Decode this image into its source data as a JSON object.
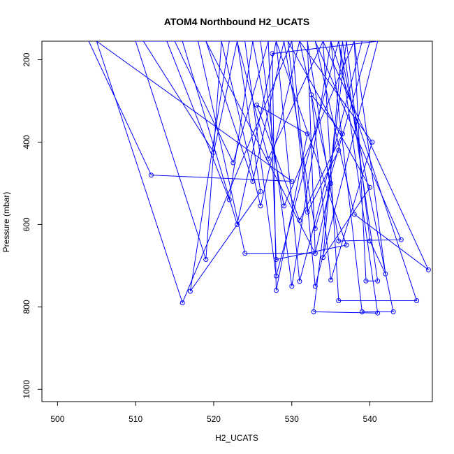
{
  "chart_data": {
    "type": "line",
    "title": "ATOM4 Northbound H2_UCATS",
    "xlabel": "H2_UCATS",
    "ylabel": "Pressure (mbar)",
    "xlim": [
      498,
      548
    ],
    "ylim": [
      1030,
      155
    ],
    "y_reversed": true,
    "xticks": [
      500,
      510,
      520,
      530,
      540
    ],
    "yticks": [
      200,
      400,
      600,
      800,
      1000
    ],
    "grid": false,
    "legend": "none",
    "color": "#0000ff",
    "series": [
      {
        "points": [
          [
            504,
            155
          ],
          [
            512,
            480
          ],
          [
            530,
            495
          ],
          [
            505,
            155
          ],
          [
            516,
            790
          ],
          [
            530,
            155
          ],
          [
            510,
            155
          ],
          [
            519,
            685
          ],
          [
            521,
            155
          ],
          [
            511,
            155
          ],
          [
            520,
            425
          ],
          [
            523,
            155
          ],
          [
            514,
            155
          ],
          [
            522,
            540
          ],
          [
            525,
            155
          ],
          [
            515,
            155
          ],
          [
            522.5,
            450
          ],
          [
            527,
            155
          ],
          [
            516,
            155
          ],
          [
            523,
            600
          ],
          [
            528,
            155
          ],
          [
            518,
            155
          ],
          [
            524,
            670
          ],
          [
            533,
            670
          ],
          [
            519,
            155
          ],
          [
            525,
            495
          ],
          [
            529,
            155
          ],
          [
            521,
            155
          ],
          [
            526,
            555
          ],
          [
            531,
            155
          ],
          [
            522,
            155
          ],
          [
            517,
            762
          ],
          [
            526,
            520
          ],
          [
            523,
            155
          ],
          [
            527,
            440
          ],
          [
            534,
            155
          ],
          [
            524,
            155
          ],
          [
            528,
            725
          ],
          [
            536,
            155
          ],
          [
            525,
            155
          ],
          [
            529,
            555
          ],
          [
            538,
            155
          ]
        ]
      },
      {
        "points": [
          [
            526,
            155
          ],
          [
            530,
            750
          ],
          [
            535,
            155
          ],
          [
            527,
            155
          ],
          [
            528,
            685
          ],
          [
            537,
            650
          ],
          [
            528,
            155
          ],
          [
            531,
            738
          ],
          [
            539,
            155
          ],
          [
            529,
            155
          ],
          [
            533,
            610
          ],
          [
            540,
            155
          ],
          [
            530,
            155
          ],
          [
            533,
            750
          ],
          [
            541,
            155
          ],
          [
            527.5,
            185
          ],
          [
            528,
            760
          ],
          [
            532,
            380
          ],
          [
            525.5,
            310
          ],
          [
            531,
            590
          ],
          [
            536.5,
            380
          ],
          [
            532.5,
            285
          ],
          [
            535,
            735
          ],
          [
            540.3,
            400
          ],
          [
            531,
            155
          ],
          [
            535,
            500
          ],
          [
            533,
            670
          ],
          [
            532,
            155
          ],
          [
            536,
            640
          ],
          [
            544,
            637
          ],
          [
            533,
            155
          ],
          [
            538,
            575
          ],
          [
            547.5,
            710
          ],
          [
            534,
            155
          ],
          [
            536,
            785
          ],
          [
            546,
            785
          ],
          [
            535,
            155
          ],
          [
            539,
            812
          ],
          [
            543,
            812
          ],
          [
            536,
            155
          ],
          [
            541,
            815
          ],
          [
            532.8,
            812
          ],
          [
            537,
            155
          ],
          [
            540,
            640
          ],
          [
            542,
            720
          ],
          [
            538,
            155
          ],
          [
            539.5,
            737
          ],
          [
            541,
            737
          ],
          [
            536.5,
            155
          ],
          [
            534,
            680
          ],
          [
            540,
            510
          ],
          [
            529.5,
            155
          ],
          [
            532,
            570
          ],
          [
            536,
            420
          ]
        ]
      }
    ]
  }
}
